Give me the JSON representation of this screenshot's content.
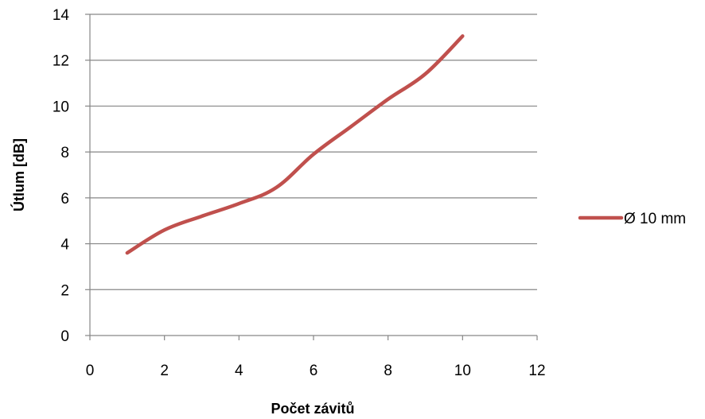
{
  "chart_data": {
    "type": "line",
    "title": "",
    "xlabel": "Počet závitů",
    "ylabel": "Útlum [dB]",
    "xlim": [
      0,
      12
    ],
    "ylim": [
      0,
      14
    ],
    "xticks": [
      0,
      2,
      4,
      6,
      8,
      10,
      12
    ],
    "yticks": [
      0,
      2,
      4,
      6,
      8,
      10,
      12,
      14
    ],
    "grid": "horizontal",
    "legend_position": "right",
    "series": [
      {
        "name": "Ø 10 mm",
        "color": "#C0504D",
        "x": [
          1,
          2,
          3,
          4,
          5,
          6,
          7,
          8,
          9,
          10
        ],
        "y": [
          3.6,
          4.6,
          5.2,
          5.75,
          6.45,
          7.9,
          9.1,
          10.3,
          11.4,
          13.05
        ]
      }
    ]
  }
}
